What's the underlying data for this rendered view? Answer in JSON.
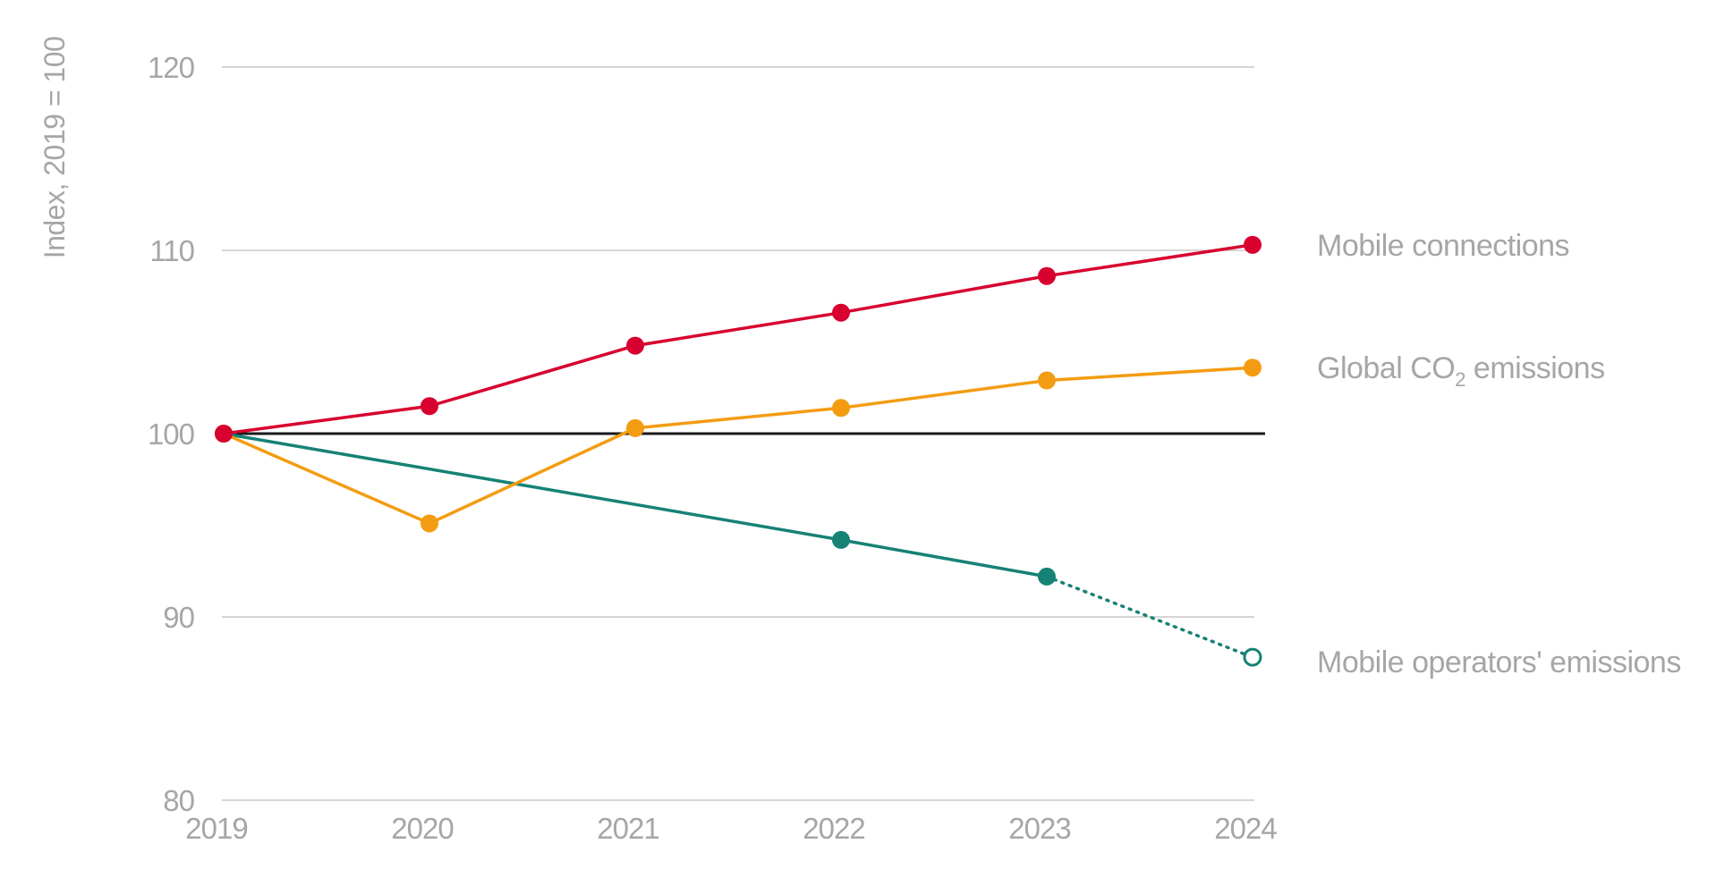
{
  "chart_data": {
    "type": "line",
    "ylabel": "Index, 2019 = 100",
    "ylim": [
      80,
      120
    ],
    "y_ticks": [
      "80",
      "90",
      "100",
      "110",
      "120"
    ],
    "x": [
      "2019",
      "2020",
      "2021",
      "2022",
      "2023",
      "2024"
    ],
    "reference_line": 100,
    "grid": "horizontal",
    "legend": "right (direct labels)",
    "series": [
      {
        "name": "Mobile connections",
        "color": "#d7002f",
        "values": [
          100,
          101.5,
          104.8,
          106.6,
          108.6,
          110.3
        ]
      },
      {
        "name": "Global CO2 emissions",
        "label_main": "Global CO",
        "label_sub": "2",
        "label_tail": " emissions",
        "color": "#f39c12",
        "values": [
          100,
          95.1,
          100.3,
          101.4,
          102.9,
          103.6
        ]
      },
      {
        "name": "Mobile operators' emissions",
        "color": "#168275",
        "values": [
          100,
          null,
          null,
          94.2,
          92.2,
          87.8
        ],
        "projected_last": true
      }
    ]
  }
}
